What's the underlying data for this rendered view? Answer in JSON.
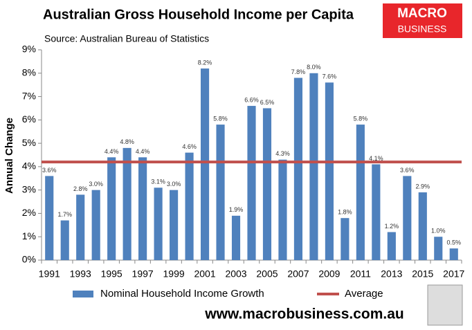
{
  "chart_data": {
    "type": "bar",
    "title": "Australian Gross Household Income per Capita",
    "subtitle": "Source: Australian Bureau of Statistics",
    "y_label": "Annual Change",
    "logo": [
      "MACRO",
      "BUSINESS"
    ],
    "footer": "www.macrobusiness.com.au",
    "categories": [
      1991,
      null,
      1993,
      null,
      1995,
      null,
      1997,
      null,
      1999,
      null,
      2001,
      null,
      2003,
      null,
      2005,
      null,
      2007,
      null,
      2009,
      null,
      2011,
      null,
      2013,
      null,
      2015,
      null,
      2017
    ],
    "series": [
      {
        "name": "Nominal Household Income Growth",
        "color": "#4f81bd",
        "values": [
          3.6,
          1.7,
          2.8,
          3.0,
          4.4,
          4.8,
          4.4,
          3.1,
          3.0,
          4.6,
          8.2,
          5.8,
          1.9,
          6.6,
          6.5,
          4.3,
          7.8,
          8.0,
          7.6,
          1.8,
          5.8,
          4.1,
          1.2,
          3.6,
          2.9,
          1.0,
          0.5
        ],
        "value_labels": [
          "3.6%",
          "1.7%",
          "2.8%",
          "3.0%",
          "4.4%",
          "4.8%",
          "4.4%",
          "3.1%",
          "3.0%",
          "4.6%",
          "8.2%",
          "5.8%",
          "1.9%",
          "6.6%",
          "6.5%",
          "4.3%",
          "7.8%",
          "8.0%",
          "7.6%",
          "1.8%",
          "5.8%",
          "4.1%",
          "1.2%",
          "3.6%",
          "2.9%",
          "1.0%",
          "0.5%"
        ]
      },
      {
        "name": "Average",
        "color": "#c0504d",
        "type": "hline",
        "value": 4.2
      }
    ],
    "ylim": [
      0,
      9
    ],
    "yticks": [
      {
        "value": 0,
        "label": "0%"
      },
      {
        "value": 1,
        "label": "1%"
      },
      {
        "value": 2,
        "label": "2%"
      },
      {
        "value": 3,
        "label": "3%"
      },
      {
        "value": 4,
        "label": "4%"
      },
      {
        "value": 5,
        "label": "5%"
      },
      {
        "value": 6,
        "label": "6%"
      },
      {
        "value": 7,
        "label": "7%"
      },
      {
        "value": 8,
        "label": "8%"
      },
      {
        "value": 9,
        "label": "9%"
      }
    ]
  }
}
